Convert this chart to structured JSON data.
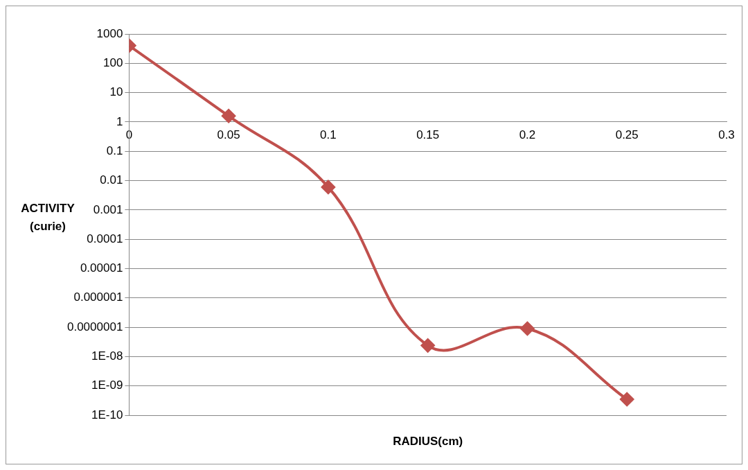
{
  "chart_data": {
    "type": "line",
    "xlabel": "RADIUS(cm)",
    "ylabel": "ACTIVITY (curie)",
    "x": [
      0,
      0.05,
      0.1,
      0.15,
      0.2,
      0.25
    ],
    "series": [
      {
        "color": "#c0504d",
        "values": [
          400,
          1.6,
          0.006,
          2.4e-08,
          9e-08,
          3.5e-10
        ]
      }
    ],
    "log": "y",
    "xlim": [
      0,
      0.3
    ],
    "xticks": [
      0,
      0.05,
      0.1,
      0.15,
      0.2,
      0.25,
      0.3
    ],
    "ylim": [
      1e-10,
      1000
    ],
    "yticks": [
      {
        "value": 1e-10,
        "label": "1E-10"
      },
      {
        "value": 1e-09,
        "label": "1E-09"
      },
      {
        "value": 1e-08,
        "label": "1E-08"
      },
      {
        "value": 1e-07,
        "label": "0.0000001"
      },
      {
        "value": 1e-06,
        "label": "0.000001"
      },
      {
        "value": 1e-05,
        "label": "0.00001"
      },
      {
        "value": 0.0001,
        "label": "0.0001"
      },
      {
        "value": 0.001,
        "label": "0.001"
      },
      {
        "value": 0.01,
        "label": "0.01"
      },
      {
        "value": 0.1,
        "label": "0.1"
      },
      1,
      10,
      100,
      1000
    ],
    "grid": "y",
    "marker": "diamond",
    "line_style": "solid",
    "legend": false
  }
}
